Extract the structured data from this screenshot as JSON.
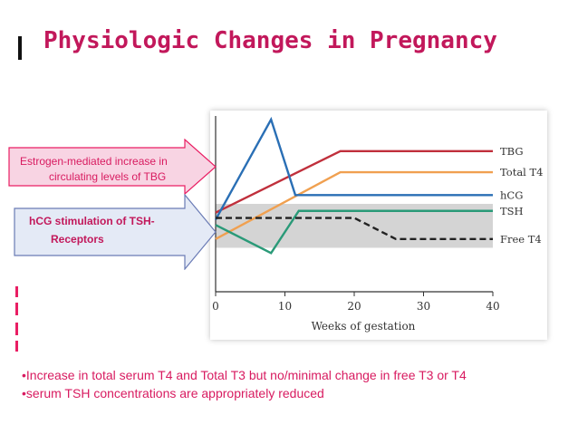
{
  "title": "Physiologic Changes in Pregnancy",
  "callouts": [
    {
      "line1": "Estrogen-mediated increase in",
      "line2": "circulating levels of TBG",
      "color": "#d81b60",
      "fill": "#f8d4e3",
      "stroke": "#e91e63"
    },
    {
      "line1": "hCG stimulation of TSH-",
      "line2": "Receptors",
      "color": "#c2185b",
      "fill": "#e4eaf6",
      "stroke": "#6a7bb5"
    }
  ],
  "bullets": [
    "•Increase in total serum T4 and Total T3 but no/minimal change in free T3 or T4",
    "•serum TSH concentrations are appropriately reduced"
  ],
  "chart_data": {
    "type": "line",
    "xlabel": "Weeks of gestation",
    "xlim": [
      0,
      40
    ],
    "ylim": [
      0,
      10
    ],
    "xticks": [
      0,
      10,
      20,
      30,
      40
    ],
    "normal_band": [
      2.5,
      5.0
    ],
    "series": [
      {
        "name": "TBG",
        "color": "#c0303c",
        "dash": false,
        "x": [
          0,
          18,
          40
        ],
        "y": [
          4.5,
          8.0,
          8.0
        ]
      },
      {
        "name": "Total T4",
        "color": "#f0a050",
        "dash": false,
        "x": [
          0,
          18,
          40
        ],
        "y": [
          3.0,
          6.8,
          6.8
        ]
      },
      {
        "name": "hCG",
        "color": "#2a6fb5",
        "dash": false,
        "x": [
          0,
          8,
          11.5,
          40
        ],
        "y": [
          4.1,
          9.8,
          5.5,
          5.5
        ]
      },
      {
        "name": "TSH",
        "color": "#2a9a78",
        "dash": false,
        "x": [
          0,
          8,
          12,
          40
        ],
        "y": [
          3.8,
          2.2,
          4.6,
          4.6
        ]
      },
      {
        "name": "Free T4",
        "color": "#222222",
        "dash": true,
        "x": [
          0,
          20,
          26,
          40
        ],
        "y": [
          4.2,
          4.2,
          3.0,
          3.0
        ]
      }
    ]
  }
}
